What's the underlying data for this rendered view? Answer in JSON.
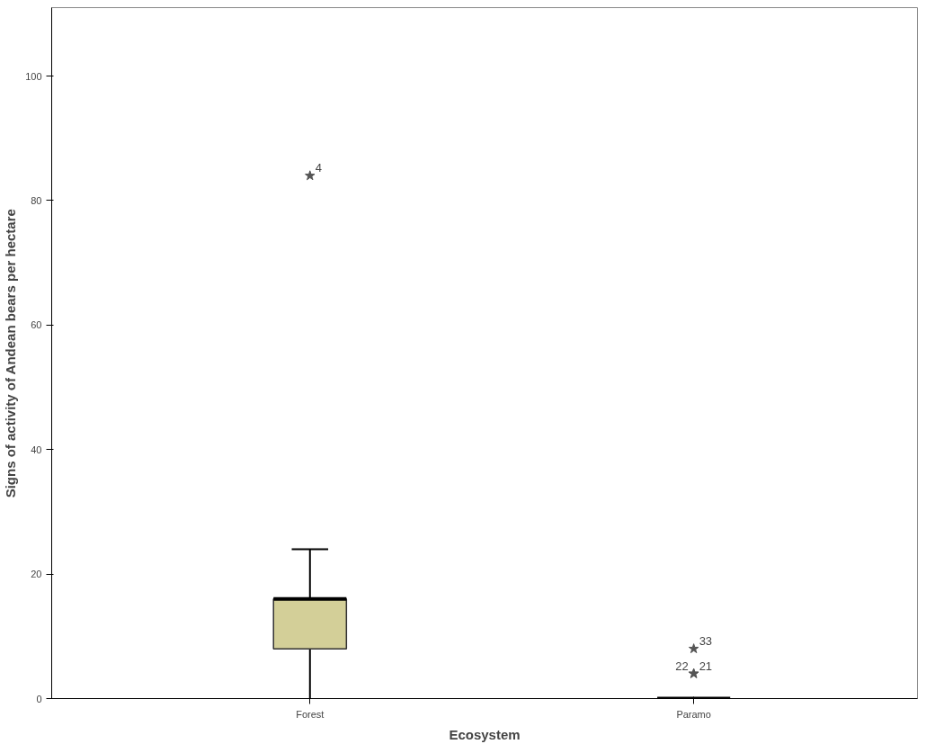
{
  "chart_data": {
    "type": "box",
    "xlabel": "Ecosystem",
    "ylabel": "Signs of activity of Andean bears per hectare",
    "categories": [
      "Forest",
      "Paramo"
    ],
    "boxes": [
      {
        "low": 0,
        "q1": 8,
        "median": 16,
        "q3": 16,
        "high": 24,
        "outliers": [
          84
        ]
      },
      {
        "low": 0,
        "q1": 0,
        "median": 0,
        "q3": 0,
        "high": 0,
        "outliers": [
          4,
          4,
          8
        ]
      }
    ],
    "color": "#d3cf98",
    "marker": "star",
    "ylim": [
      0,
      111
    ],
    "yticks": [
      0,
      20,
      40,
      60,
      80,
      100
    ],
    "grid": false,
    "annotations": [
      "4",
      "21",
      "22",
      "33"
    ]
  }
}
